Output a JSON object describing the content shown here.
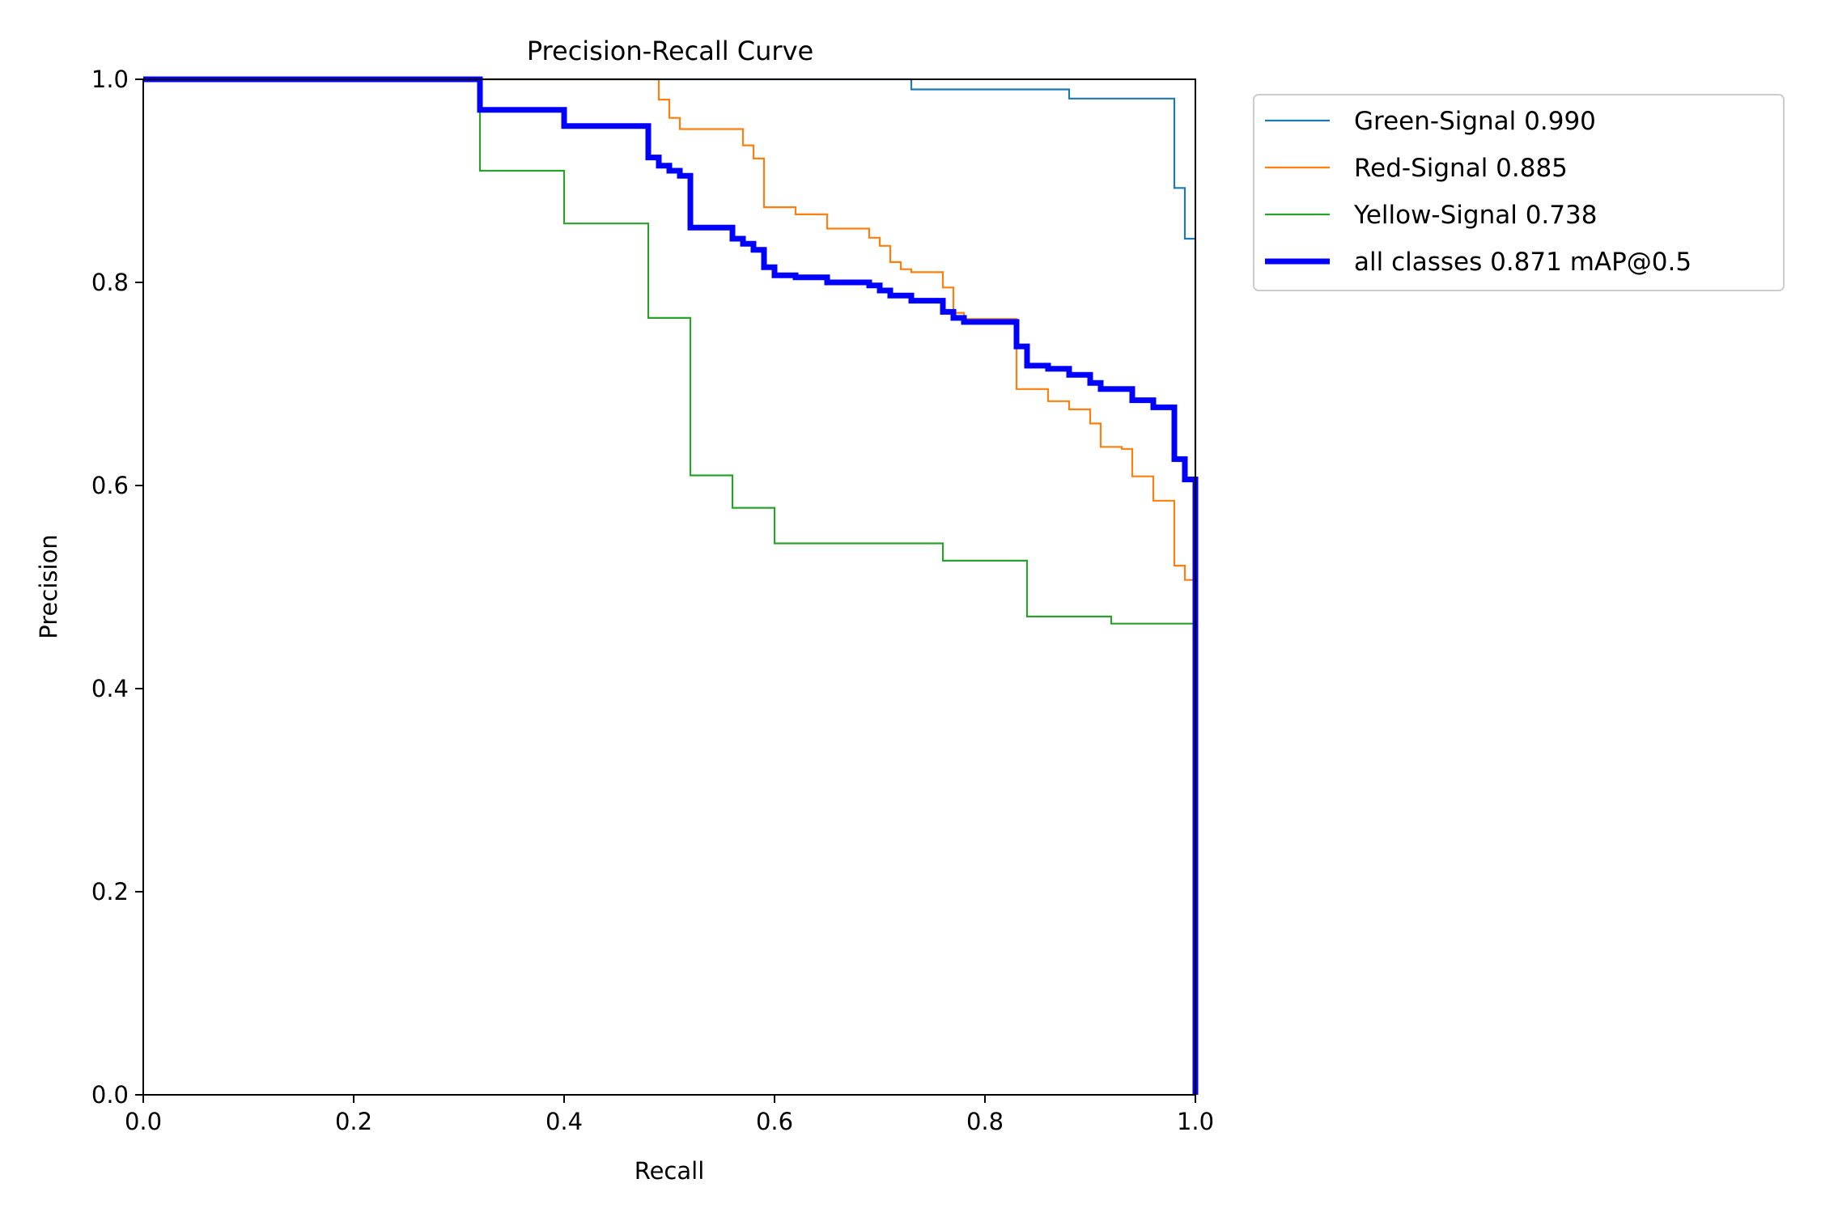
{
  "chart_data": {
    "type": "line",
    "title": "Precision-Recall Curve",
    "xlabel": "Recall",
    "ylabel": "Precision",
    "xlim": [
      0,
      1
    ],
    "ylim": [
      0,
      1
    ],
    "xticks": [
      "0.0",
      "0.2",
      "0.4",
      "0.6",
      "0.8",
      "1.0"
    ],
    "yticks": [
      "0.0",
      "0.2",
      "0.4",
      "0.6",
      "0.8",
      "1.0"
    ],
    "grid": false,
    "legend_position": "outside-top-right",
    "series": [
      {
        "name": "Green-Signal 0.990",
        "color": "#1f77b4",
        "points": [
          [
            0,
            1.0
          ],
          [
            0.73,
            1.0
          ],
          [
            0.73,
            0.99
          ],
          [
            0.88,
            0.99
          ],
          [
            0.88,
            0.981
          ],
          [
            0.98,
            0.981
          ],
          [
            0.98,
            0.893
          ],
          [
            0.99,
            0.893
          ],
          [
            0.99,
            0.843
          ],
          [
            1.0,
            0.843
          ],
          [
            1.0,
            0.0
          ]
        ]
      },
      {
        "name": "Red-Signal 0.885",
        "color": "#ff7f0e",
        "points": [
          [
            0,
            1.0
          ],
          [
            0.49,
            1.0
          ],
          [
            0.49,
            0.98
          ],
          [
            0.5,
            0.98
          ],
          [
            0.5,
            0.962
          ],
          [
            0.51,
            0.962
          ],
          [
            0.51,
            0.951
          ],
          [
            0.57,
            0.951
          ],
          [
            0.57,
            0.935
          ],
          [
            0.58,
            0.935
          ],
          [
            0.58,
            0.922
          ],
          [
            0.59,
            0.922
          ],
          [
            0.59,
            0.874
          ],
          [
            0.62,
            0.874
          ],
          [
            0.62,
            0.867
          ],
          [
            0.65,
            0.867
          ],
          [
            0.65,
            0.853
          ],
          [
            0.69,
            0.853
          ],
          [
            0.69,
            0.844
          ],
          [
            0.7,
            0.844
          ],
          [
            0.7,
            0.836
          ],
          [
            0.71,
            0.836
          ],
          [
            0.71,
            0.82
          ],
          [
            0.72,
            0.82
          ],
          [
            0.72,
            0.813
          ],
          [
            0.73,
            0.813
          ],
          [
            0.73,
            0.81
          ],
          [
            0.76,
            0.81
          ],
          [
            0.76,
            0.795
          ],
          [
            0.77,
            0.795
          ],
          [
            0.77,
            0.77
          ],
          [
            0.78,
            0.77
          ],
          [
            0.78,
            0.764
          ],
          [
            0.83,
            0.764
          ],
          [
            0.83,
            0.695
          ],
          [
            0.86,
            0.695
          ],
          [
            0.86,
            0.683
          ],
          [
            0.88,
            0.683
          ],
          [
            0.88,
            0.675
          ],
          [
            0.9,
            0.675
          ],
          [
            0.9,
            0.661
          ],
          [
            0.91,
            0.661
          ],
          [
            0.91,
            0.638
          ],
          [
            0.93,
            0.638
          ],
          [
            0.93,
            0.636
          ],
          [
            0.94,
            0.636
          ],
          [
            0.94,
            0.609
          ],
          [
            0.96,
            0.609
          ],
          [
            0.96,
            0.585
          ],
          [
            0.98,
            0.585
          ],
          [
            0.98,
            0.521
          ],
          [
            0.99,
            0.521
          ],
          [
            0.99,
            0.507
          ],
          [
            1.0,
            0.507
          ],
          [
            1.0,
            0.0
          ]
        ]
      },
      {
        "name": "Yellow-Signal 0.738",
        "color": "#2ca02c",
        "points": [
          [
            0,
            1.0
          ],
          [
            0.32,
            1.0
          ],
          [
            0.32,
            0.91
          ],
          [
            0.4,
            0.91
          ],
          [
            0.4,
            0.858
          ],
          [
            0.48,
            0.858
          ],
          [
            0.48,
            0.765
          ],
          [
            0.52,
            0.765
          ],
          [
            0.52,
            0.61
          ],
          [
            0.56,
            0.61
          ],
          [
            0.56,
            0.578
          ],
          [
            0.6,
            0.578
          ],
          [
            0.6,
            0.543
          ],
          [
            0.76,
            0.543
          ],
          [
            0.76,
            0.526
          ],
          [
            0.84,
            0.526
          ],
          [
            0.84,
            0.471
          ],
          [
            0.92,
            0.471
          ],
          [
            0.92,
            0.464
          ],
          [
            1.0,
            0.464
          ],
          [
            1.0,
            0.0
          ]
        ]
      },
      {
        "name": "all classes 0.871 mAP@0.5",
        "color": "#0000ff",
        "bold": true,
        "points": [
          [
            0,
            1.0
          ],
          [
            0.32,
            1.0
          ],
          [
            0.32,
            0.97
          ],
          [
            0.4,
            0.97
          ],
          [
            0.4,
            0.954
          ],
          [
            0.48,
            0.954
          ],
          [
            0.48,
            0.923
          ],
          [
            0.49,
            0.923
          ],
          [
            0.49,
            0.915
          ],
          [
            0.5,
            0.915
          ],
          [
            0.5,
            0.91
          ],
          [
            0.51,
            0.91
          ],
          [
            0.51,
            0.905
          ],
          [
            0.52,
            0.905
          ],
          [
            0.52,
            0.854
          ],
          [
            0.56,
            0.854
          ],
          [
            0.56,
            0.843
          ],
          [
            0.57,
            0.843
          ],
          [
            0.57,
            0.838
          ],
          [
            0.58,
            0.838
          ],
          [
            0.58,
            0.832
          ],
          [
            0.59,
            0.832
          ],
          [
            0.59,
            0.815
          ],
          [
            0.6,
            0.815
          ],
          [
            0.6,
            0.807
          ],
          [
            0.62,
            0.807
          ],
          [
            0.62,
            0.805
          ],
          [
            0.65,
            0.805
          ],
          [
            0.65,
            0.8
          ],
          [
            0.69,
            0.8
          ],
          [
            0.69,
            0.797
          ],
          [
            0.7,
            0.797
          ],
          [
            0.7,
            0.792
          ],
          [
            0.71,
            0.792
          ],
          [
            0.71,
            0.787
          ],
          [
            0.73,
            0.787
          ],
          [
            0.73,
            0.782
          ],
          [
            0.76,
            0.782
          ],
          [
            0.76,
            0.771
          ],
          [
            0.77,
            0.771
          ],
          [
            0.77,
            0.765
          ],
          [
            0.78,
            0.765
          ],
          [
            0.78,
            0.761
          ],
          [
            0.83,
            0.761
          ],
          [
            0.83,
            0.737
          ],
          [
            0.84,
            0.737
          ],
          [
            0.84,
            0.718
          ],
          [
            0.86,
            0.718
          ],
          [
            0.86,
            0.715
          ],
          [
            0.88,
            0.715
          ],
          [
            0.88,
            0.709
          ],
          [
            0.9,
            0.709
          ],
          [
            0.9,
            0.701
          ],
          [
            0.91,
            0.701
          ],
          [
            0.91,
            0.695
          ],
          [
            0.94,
            0.695
          ],
          [
            0.94,
            0.684
          ],
          [
            0.96,
            0.684
          ],
          [
            0.96,
            0.677
          ],
          [
            0.98,
            0.677
          ],
          [
            0.98,
            0.626
          ],
          [
            0.99,
            0.626
          ],
          [
            0.99,
            0.606
          ],
          [
            1.0,
            0.606
          ],
          [
            1.0,
            0.0
          ]
        ]
      }
    ]
  }
}
